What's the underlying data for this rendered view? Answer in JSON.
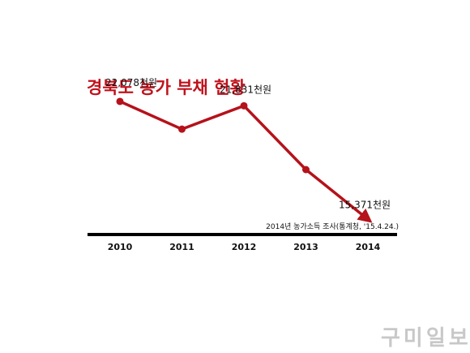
{
  "chart_data": {
    "type": "line",
    "title": "경북도 농가 부채 현황",
    "categories": [
      "2010",
      "2011",
      "2012",
      "2013",
      "2014"
    ],
    "values": [
      22078,
      20500,
      21831,
      18200,
      15371
    ],
    "data_labels": [
      "22,078천원",
      "",
      "21,831천원",
      "",
      "15,371천원"
    ],
    "ylim": [
      14000,
      23000
    ],
    "grid": false,
    "legend": "none",
    "source": "2014년 농가소득 조사(통계청, '15.4.24.)"
  },
  "colors": {
    "line": "#b5121b",
    "title": "#c0121c",
    "axis": "#000000"
  },
  "watermark": "구미일보"
}
